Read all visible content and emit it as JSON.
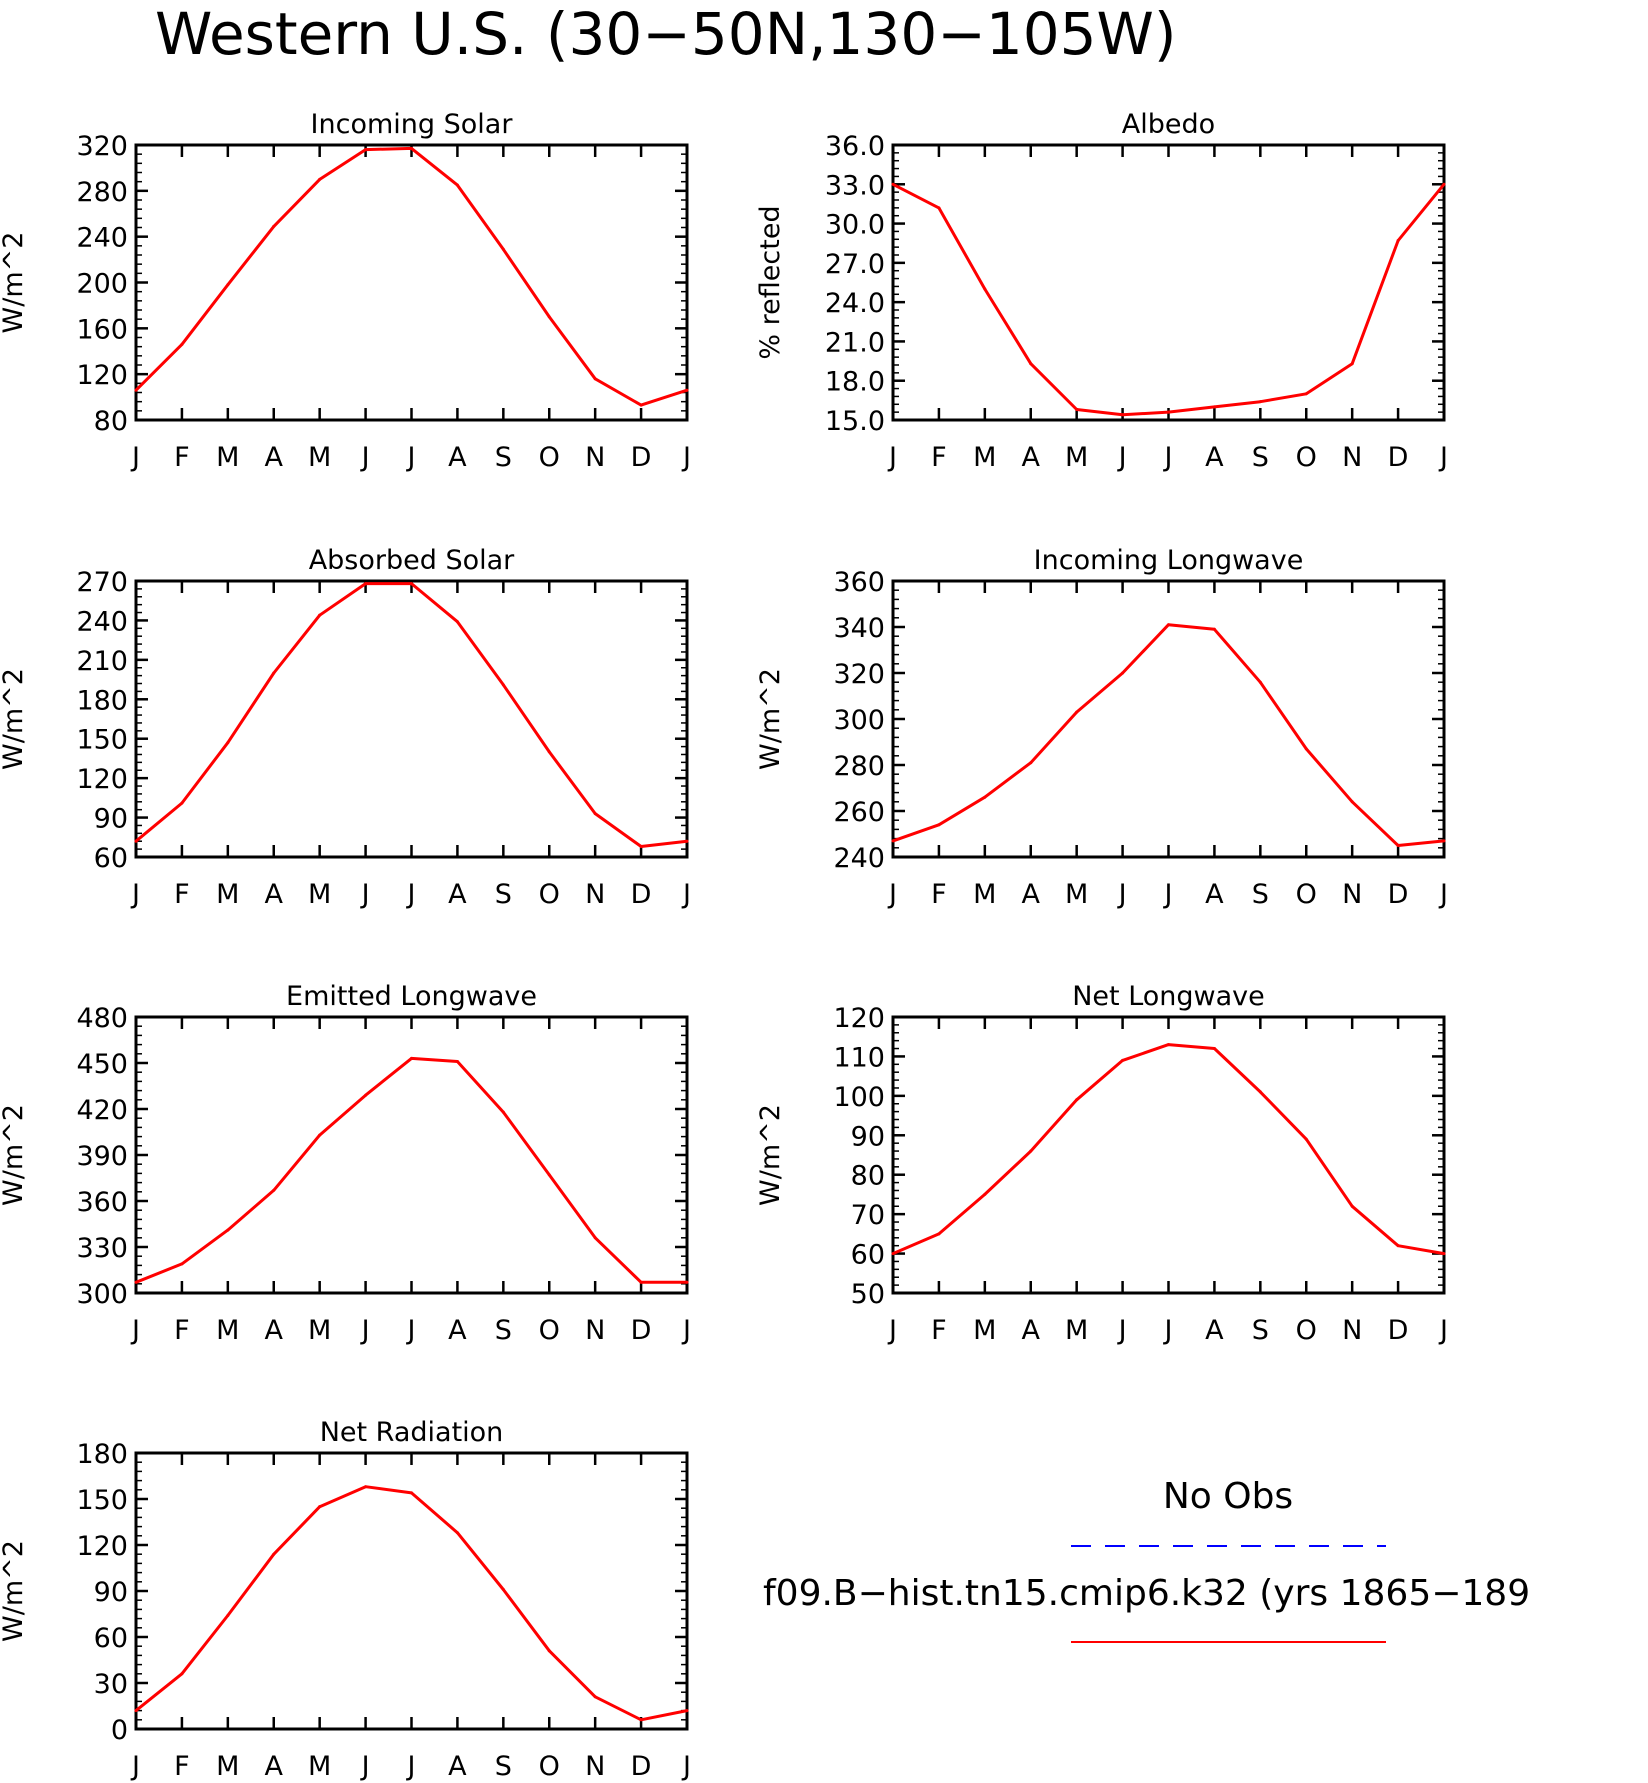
{
  "figure": {
    "title": "Western U.S. (30−50N,130−105W)"
  },
  "colors": {
    "model": "#ff0000",
    "obs": "#0000ff"
  },
  "legend": {
    "obs_label": "No Obs",
    "model_label": "f09.B−hist.tn15.cmip6.k32 (yrs 1865−189"
  },
  "chart_data": [
    {
      "type": "line",
      "title": "Incoming Solar",
      "ylabel": "W/m^2",
      "categories": [
        "J",
        "F",
        "M",
        "A",
        "M",
        "J",
        "J",
        "A",
        "S",
        "O",
        "N",
        "D",
        "J"
      ],
      "ylim": [
        80,
        320
      ],
      "yticks": [
        "80",
        "120",
        "160",
        "200",
        "240",
        "280",
        "320"
      ],
      "series": [
        {
          "values": [
            106,
            146,
            198,
            249,
            290,
            316,
            317,
            285,
            229,
            170,
            116,
            93,
            106
          ]
        }
      ]
    },
    {
      "type": "line",
      "title": "Albedo",
      "ylabel": "% reflected",
      "categories": [
        "J",
        "F",
        "M",
        "A",
        "M",
        "J",
        "J",
        "A",
        "S",
        "O",
        "N",
        "D",
        "J"
      ],
      "ylim": [
        15.0,
        36.0
      ],
      "yticks": [
        "15.0",
        "18.0",
        "21.0",
        "24.0",
        "27.0",
        "30.0",
        "33.0",
        "36.0"
      ],
      "series": [
        {
          "values": [
            33.0,
            31.2,
            25.0,
            19.3,
            15.8,
            15.4,
            15.6,
            16.0,
            16.4,
            17.0,
            19.3,
            28.7,
            33.0
          ]
        }
      ]
    },
    {
      "type": "line",
      "title": "Absorbed Solar",
      "ylabel": "W/m^2",
      "categories": [
        "J",
        "F",
        "M",
        "A",
        "M",
        "J",
        "J",
        "A",
        "S",
        "O",
        "N",
        "D",
        "J"
      ],
      "ylim": [
        60,
        270
      ],
      "yticks": [
        "60",
        "90",
        "120",
        "150",
        "180",
        "210",
        "240",
        "270"
      ],
      "series": [
        {
          "values": [
            72,
            101,
            147,
            200,
            244,
            268,
            268,
            239,
            191,
            140,
            93,
            68,
            72
          ]
        }
      ]
    },
    {
      "type": "line",
      "title": "Incoming Longwave",
      "ylabel": "W/m^2",
      "categories": [
        "J",
        "F",
        "M",
        "A",
        "M",
        "J",
        "J",
        "A",
        "S",
        "O",
        "N",
        "D",
        "J"
      ],
      "ylim": [
        240,
        360
      ],
      "yticks": [
        "240",
        "260",
        "280",
        "300",
        "320",
        "340",
        "360"
      ],
      "series": [
        {
          "values": [
            247,
            254,
            266,
            281,
            303,
            320,
            341,
            339,
            316,
            287,
            264,
            245,
            247
          ]
        }
      ]
    },
    {
      "type": "line",
      "title": "Emitted Longwave",
      "ylabel": "W/m^2",
      "categories": [
        "J",
        "F",
        "M",
        "A",
        "M",
        "J",
        "J",
        "A",
        "S",
        "O",
        "N",
        "D",
        "J"
      ],
      "ylim": [
        300,
        480
      ],
      "yticks": [
        "300",
        "330",
        "360",
        "390",
        "420",
        "450",
        "480"
      ],
      "series": [
        {
          "values": [
            307,
            319,
            341,
            367,
            403,
            429,
            453,
            451,
            418,
            377,
            336,
            307,
            307
          ]
        }
      ]
    },
    {
      "type": "line",
      "title": "Net Longwave",
      "ylabel": "W/m^2",
      "categories": [
        "J",
        "F",
        "M",
        "A",
        "M",
        "J",
        "J",
        "A",
        "S",
        "O",
        "N",
        "D",
        "J"
      ],
      "ylim": [
        50,
        120
      ],
      "yticks": [
        "50",
        "60",
        "70",
        "80",
        "90",
        "100",
        "110",
        "120"
      ],
      "series": [
        {
          "values": [
            60,
            65,
            75,
            86,
            99,
            109,
            113,
            112,
            101,
            89,
            72,
            62,
            60
          ]
        }
      ]
    },
    {
      "type": "line",
      "title": "Net Radiation",
      "ylabel": "W/m^2",
      "categories": [
        "J",
        "F",
        "M",
        "A",
        "M",
        "J",
        "J",
        "A",
        "S",
        "O",
        "N",
        "D",
        "J"
      ],
      "ylim": [
        0,
        180
      ],
      "yticks": [
        "0",
        "30",
        "60",
        "90",
        "120",
        "150",
        "180"
      ],
      "series": [
        {
          "values": [
            12,
            36,
            74,
            114,
            145,
            158,
            154,
            128,
            91,
            51,
            21,
            6,
            12
          ]
        }
      ]
    }
  ]
}
